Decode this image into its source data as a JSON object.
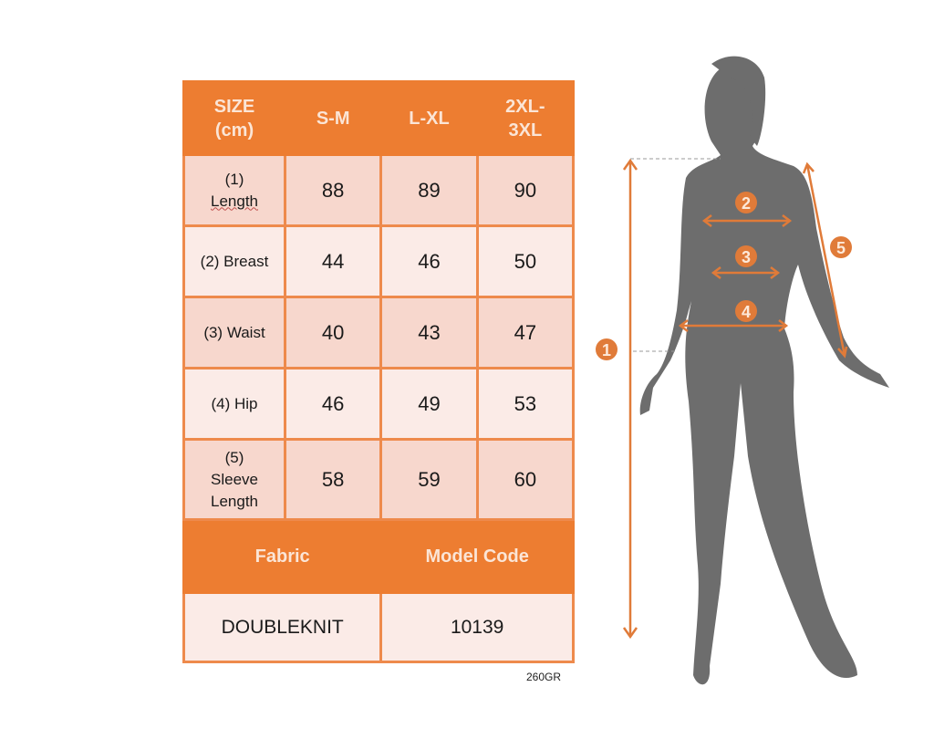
{
  "header": {
    "size_label_line1": "SIZE",
    "size_label_line2": "(cm)",
    "sizes": [
      "S-M",
      "L-XL",
      "2XL-",
      "3XL"
    ]
  },
  "rows": [
    {
      "label_line1": "(1)",
      "label_line2": "Length",
      "values": [
        "88",
        "89",
        "90"
      ]
    },
    {
      "label": "(2) Breast",
      "values": [
        "44",
        "46",
        "50"
      ]
    },
    {
      "label": "(3) Waist",
      "values": [
        "40",
        "43",
        "47"
      ]
    },
    {
      "label": "(4) Hip",
      "values": [
        "46",
        "49",
        "53"
      ]
    },
    {
      "label_line1": "(5)",
      "label_line2": "Sleeve",
      "label_line3": "Length",
      "values": [
        "58",
        "59",
        "60"
      ]
    }
  ],
  "footer": {
    "fabric_label": "Fabric",
    "model_code_label": "Model Code",
    "fabric": "DOUBLEKNIT",
    "model_code": "10139"
  },
  "note": "260GR",
  "figure": {
    "markers": [
      "1",
      "2",
      "3",
      "4",
      "5"
    ]
  },
  "colors": {
    "accent": "#ed7d31",
    "silhouette": "#6d6d6d",
    "row_dark": "#f7d7cd",
    "row_light": "#fbebe7"
  }
}
